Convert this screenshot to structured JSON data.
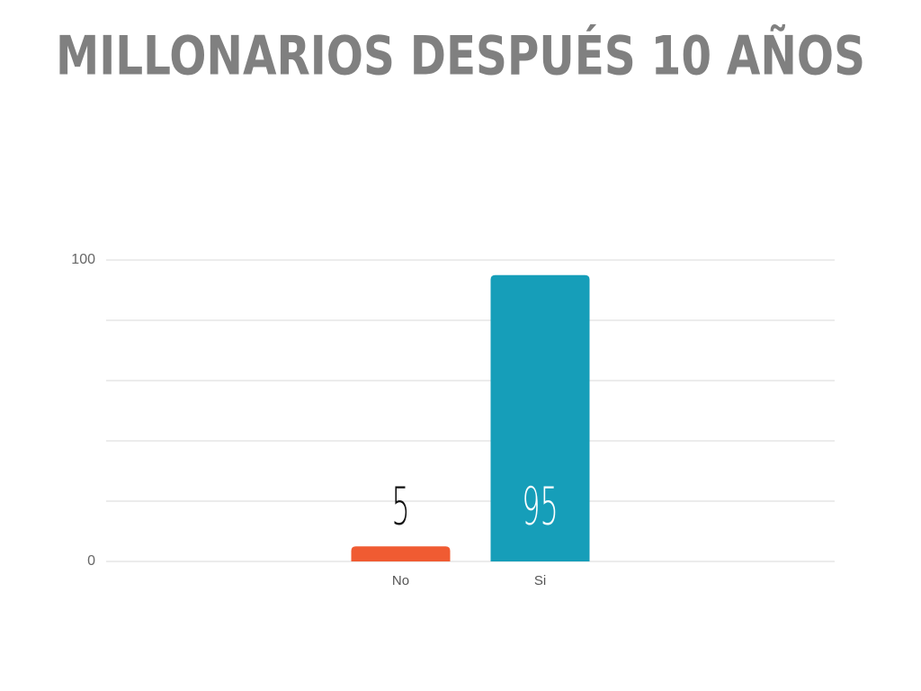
{
  "chart_data": {
    "type": "bar",
    "title": "MILLONARIOS DESPUÉS 10 AÑOS",
    "categories": [
      "No",
      "Si"
    ],
    "values": [
      5,
      95
    ],
    "colors": [
      "#f05b32",
      "#169eb9"
    ],
    "value_label_colors": [
      "#111111",
      "#ffffff"
    ],
    "ylim": [
      0,
      100
    ],
    "yticks": [
      0,
      100
    ],
    "gridlines": [
      0,
      20,
      40,
      60,
      80,
      100
    ],
    "grid": true
  }
}
